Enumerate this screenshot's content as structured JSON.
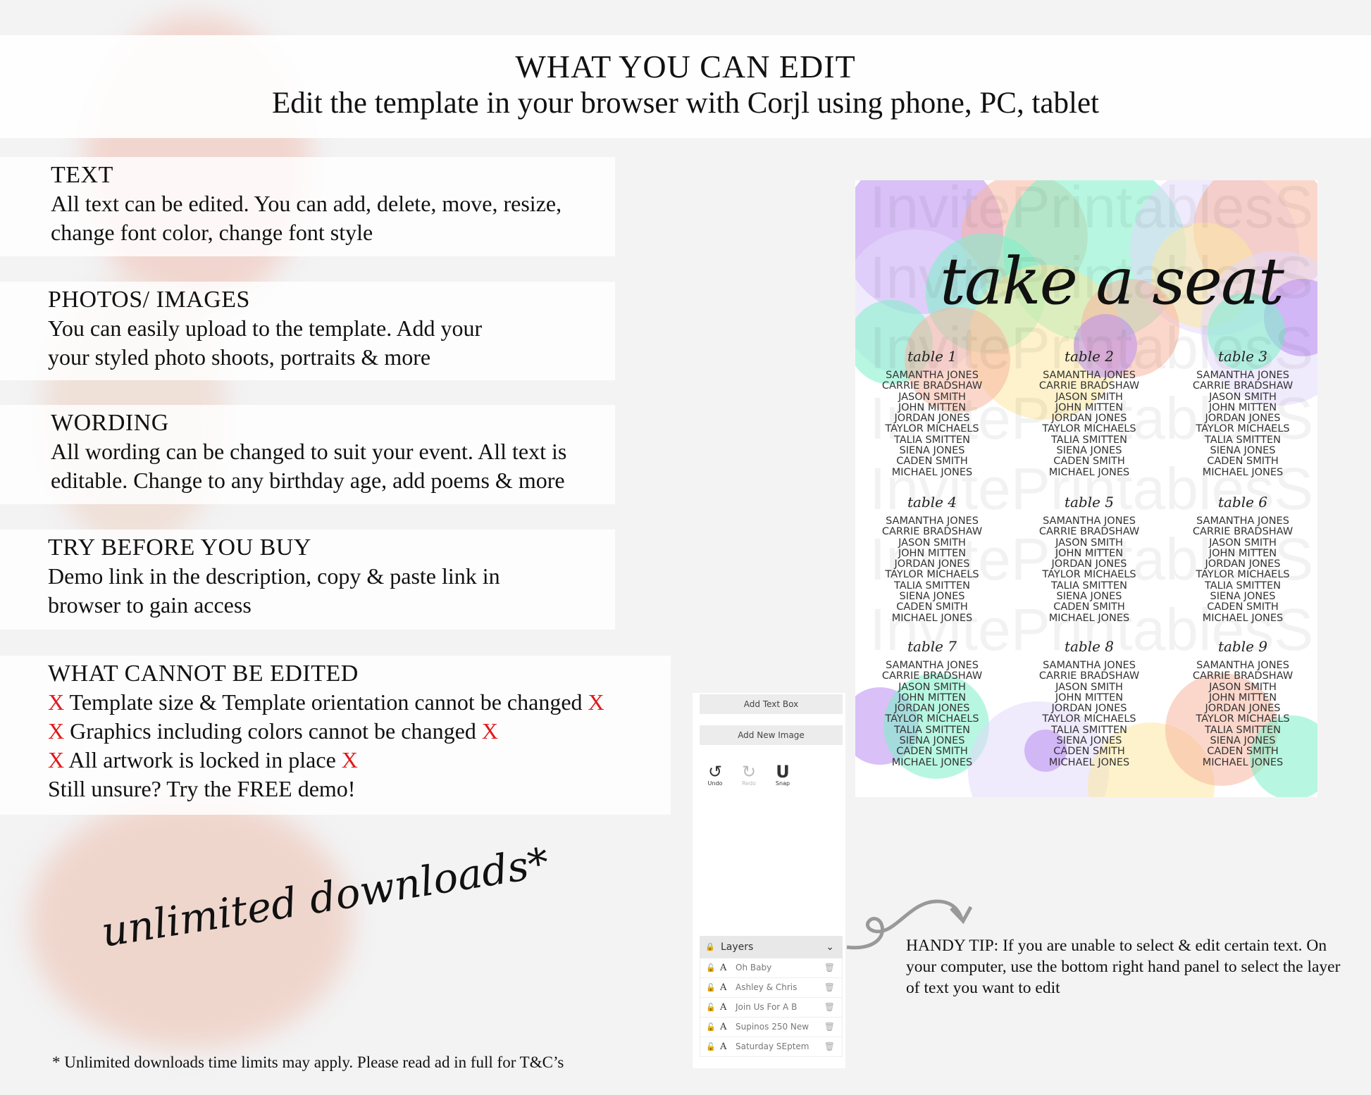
{
  "header": {
    "title": "WHAT YOU CAN EDIT",
    "subtitle": "Edit the template in your browser with Corjl using phone, PC, tablet"
  },
  "sections": [
    {
      "heading": "TEXT",
      "lines": [
        "All text can be edited. You can add, delete, move, resize,",
        "change font color, change font style"
      ]
    },
    {
      "heading": "PHOTOS/ IMAGES",
      "lines": [
        "You can easily upload to the template. Add your",
        "your styled photo shoots, portraits & more"
      ]
    },
    {
      "heading": "WORDING",
      "lines": [
        "All wording can be changed to suit your event. All text is",
        "editable. Change to any birthday age, add poems & more"
      ]
    },
    {
      "heading": "TRY BEFORE YOU BUY",
      "lines": [
        "Demo link in the description, copy & paste link in",
        "browser to gain access"
      ]
    }
  ],
  "cannot": {
    "heading": "WHAT CANNOT BE EDITED",
    "mark": "X",
    "items": [
      "Template size & Template orientation cannot be changed",
      "Graphics including colors cannot be changed",
      "All artwork is locked in place"
    ],
    "closing": "Still unsure? Try the FREE demo!"
  },
  "preview": {
    "title": "take a seat",
    "watermark": "InvitePrintablesShop",
    "tables": [
      "table 1",
      "table 2",
      "table 3",
      "table 4",
      "table 5",
      "table 6",
      "table 7",
      "table 8",
      "table 9"
    ],
    "names": [
      "SAMANTHA JONES",
      "CARRIE BRADSHAW",
      "JASON SMITH",
      "JOHN MITTEN",
      "JORDAN JONES",
      "TAYLOR MICHAELS",
      "TALIA SMITTEN",
      "SIENA JONES",
      "CADEN SMITH",
      "MICHAEL JONES"
    ],
    "colors": [
      "#b98cf0",
      "#f7b7a0",
      "#7cf0c8",
      "#fbe7a0",
      "#e4d8fb"
    ]
  },
  "editor": {
    "add_text": "Add Text Box",
    "add_image": "Add New Image",
    "tools": [
      {
        "label": "Undo",
        "icon": "undo-icon"
      },
      {
        "label": "Redo",
        "icon": "redo-icon"
      },
      {
        "label": "Snap",
        "icon": "magnet-icon"
      }
    ],
    "layers_label": "Layers",
    "layers": [
      "Oh Baby",
      "Ashley & Chris",
      "Join Us For A B",
      "Supinos 250 New",
      "Saturday SEptem"
    ]
  },
  "tip": "HANDY TIP: If you are unable to select & edit certain text. On your computer, use the bottom right hand panel to select the layer of text you want to edit",
  "promo": "unlimited downloads*",
  "footnote": "* Unlimited downloads time limits may apply. Please read ad in full for T&C’s"
}
